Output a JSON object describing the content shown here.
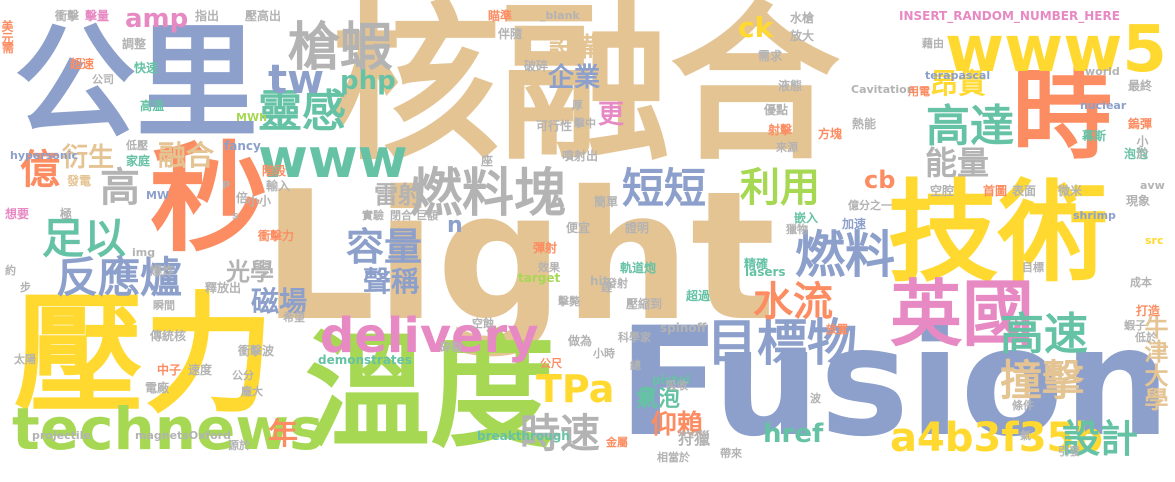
{
  "colors": {
    "tan": "#e5c494",
    "blue": "#8da0cb",
    "yellow": "#ffd92f",
    "green": "#a6d854",
    "orange": "#fc8d62",
    "teal": "#66c2a5",
    "pink": "#e78ac3",
    "gray": "#b3b3b3"
  },
  "words": [
    {
      "text": "核融合",
      "color": "tan"
    },
    {
      "text": "Light",
      "color": "tan"
    },
    {
      "text": "Fusion",
      "color": "blue"
    },
    {
      "text": "公里",
      "color": "blue"
    },
    {
      "text": "壓力",
      "color": "yellow"
    },
    {
      "text": "溫度",
      "color": "green"
    },
    {
      "text": "秒",
      "color": "orange"
    },
    {
      "text": "技術",
      "color": "yellow"
    },
    {
      "text": "時",
      "color": "orange"
    },
    {
      "text": "www5",
      "color": "yellow"
    },
    {
      "text": "英國",
      "color": "pink"
    },
    {
      "text": "technews",
      "color": "green"
    },
    {
      "text": "delivery",
      "color": "pink"
    },
    {
      "text": "www",
      "color": "teal"
    },
    {
      "text": "燃料塊",
      "color": "gray"
    },
    {
      "text": "目標物",
      "color": "blue"
    },
    {
      "text": "槍蝦",
      "color": "gray"
    },
    {
      "text": "靈感",
      "color": "teal"
    },
    {
      "text": "高達",
      "color": "teal"
    },
    {
      "text": "高速",
      "color": "teal"
    },
    {
      "text": "燃料",
      "color": "blue"
    },
    {
      "text": "a4b3f35b",
      "color": "yellow"
    },
    {
      "text": "短短",
      "color": "blue"
    },
    {
      "text": "足以",
      "color": "teal"
    },
    {
      "text": "反應爐",
      "color": "blue"
    },
    {
      "text": "撞擊",
      "color": "tan"
    },
    {
      "text": "TPa",
      "color": "yellow"
    },
    {
      "text": "水流",
      "color": "orange"
    },
    {
      "text": "時速",
      "color": "gray"
    },
    {
      "text": "設計",
      "color": "teal"
    },
    {
      "text": "tw",
      "color": "blue"
    },
    {
      "text": "利用",
      "color": "green"
    },
    {
      "text": "容量",
      "color": "blue"
    },
    {
      "text": "億",
      "color": "orange"
    },
    {
      "text": "高",
      "color": "gray"
    },
    {
      "text": "能量",
      "color": "gray"
    },
    {
      "text": "牛津大學",
      "color": "tan"
    },
    {
      "text": "融合",
      "color": "tan"
    },
    {
      "text": "衍生",
      "color": "tan"
    },
    {
      "text": "設備",
      "color": "tan"
    },
    {
      "text": "企業",
      "color": "blue"
    },
    {
      "text": "更",
      "color": "pink"
    },
    {
      "text": "昂貴",
      "color": "yellow"
    },
    {
      "text": "php",
      "color": "teal"
    },
    {
      "text": "amp",
      "color": "pink"
    },
    {
      "text": "雷射",
      "color": "gray"
    },
    {
      "text": "聲稱",
      "color": "blue"
    },
    {
      "text": "光學",
      "color": "gray"
    },
    {
      "text": "磁場",
      "color": "blue"
    },
    {
      "text": "href",
      "color": "teal"
    },
    {
      "text": "仰賴",
      "color": "orange"
    },
    {
      "text": "年",
      "color": "orange"
    },
    {
      "text": "cb",
      "color": "orange"
    },
    {
      "text": "ck",
      "color": "yellow"
    },
    {
      "text": "n",
      "color": "blue"
    },
    {
      "text": "a",
      "color": "teal"
    },
    {
      "text": "氣泡",
      "color": "teal"
    },
    {
      "text": "狩獵",
      "color": "gray"
    },
    {
      "text": "INSERT_RANDOM_NUMBER_HERE",
      "color": "pink"
    },
    {
      "text": "Cavitation",
      "color": "gray"
    },
    {
      "text": "terapascal",
      "color": "blue"
    },
    {
      "text": "world",
      "color": "gray"
    },
    {
      "text": "nuclear",
      "color": "blue"
    },
    {
      "text": "hypersonic",
      "color": "blue"
    },
    {
      "text": "fancy",
      "color": "blue"
    },
    {
      "text": "MWh",
      "color": "green"
    },
    {
      "text": "MW",
      "color": "blue"
    },
    {
      "text": "img",
      "color": "gray"
    },
    {
      "text": "_blank",
      "color": "gray"
    },
    {
      "text": "lasers",
      "color": "teal"
    },
    {
      "text": "target",
      "color": "green"
    },
    {
      "text": "hit",
      "color": "gray"
    },
    {
      "text": "spinoff",
      "color": "gray"
    },
    {
      "text": "pistol",
      "color": "teal"
    },
    {
      "text": "demonstrates",
      "color": "teal"
    },
    {
      "text": "projectile",
      "color": "gray"
    },
    {
      "text": "magnetsOxford",
      "color": "gray"
    },
    {
      "text": "breakthrough",
      "color": "teal"
    },
    {
      "text": "shrimp",
      "color": "blue"
    },
    {
      "text": "src",
      "color": "yellow"
    },
    {
      "text": "avw",
      "color": "gray"
    },
    {
      "text": "P",
      "color": "gray"
    },
    {
      "text": "s",
      "color": "gray"
    },
    {
      "text": "美元",
      "color": "orange"
    },
    {
      "text": "衝擊",
      "color": "gray"
    },
    {
      "text": "擊量",
      "color": "pink"
    },
    {
      "text": "指出",
      "color": "gray"
    },
    {
      "text": "壓高出",
      "color": "gray"
    },
    {
      "text": "瞄準",
      "color": "orange"
    },
    {
      "text": "伴隨",
      "color": "gray"
    },
    {
      "text": "水槍",
      "color": "gray"
    },
    {
      "text": "放大",
      "color": "gray"
    },
    {
      "text": "需求",
      "color": "gray"
    },
    {
      "text": "藉由",
      "color": "gray"
    },
    {
      "text": "用電",
      "color": "orange"
    },
    {
      "text": "最終",
      "color": "gray"
    },
    {
      "text": "鎢彈",
      "color": "orange"
    },
    {
      "text": "幕斯",
      "color": "teal"
    },
    {
      "text": "泡泡",
      "color": "teal"
    },
    {
      "text": "現象",
      "color": "gray"
    },
    {
      "text": "小於",
      "color": "gray"
    },
    {
      "text": "需",
      "color": "orange"
    },
    {
      "text": "超速",
      "color": "orange"
    },
    {
      "text": "調整",
      "color": "gray"
    },
    {
      "text": "快速",
      "color": "teal"
    },
    {
      "text": "公司",
      "color": "gray"
    },
    {
      "text": "高溫",
      "color": "teal"
    },
    {
      "text": "破碎",
      "color": "gray"
    },
    {
      "text": "擊中",
      "color": "gray"
    },
    {
      "text": "厚",
      "color": "gray"
    },
    {
      "text": "可行性",
      "color": "gray"
    },
    {
      "text": "液態",
      "color": "gray"
    },
    {
      "text": "優點",
      "color": "gray"
    },
    {
      "text": "射擊",
      "color": "orange"
    },
    {
      "text": "方塊",
      "color": "orange"
    },
    {
      "text": "熱能",
      "color": "gray"
    },
    {
      "text": "來源",
      "color": "gray"
    },
    {
      "text": "低壓",
      "color": "gray"
    },
    {
      "text": "家庭",
      "color": "teal"
    },
    {
      "text": "發電",
      "color": "tan"
    },
    {
      "text": "想要",
      "color": "pink"
    },
    {
      "text": "極",
      "color": "gray"
    },
    {
      "text": "噴射出",
      "color": "gray"
    },
    {
      "text": "座",
      "color": "gray"
    },
    {
      "text": "階段",
      "color": "orange"
    },
    {
      "text": "輸入",
      "color": "gray"
    },
    {
      "text": "小小",
      "color": "gray"
    },
    {
      "text": "簡單",
      "color": "gray"
    },
    {
      "text": "空腔",
      "color": "gray"
    },
    {
      "text": "首圖",
      "color": "orange"
    },
    {
      "text": "表面",
      "color": "gray"
    },
    {
      "text": "微米",
      "color": "gray"
    },
    {
      "text": "億分之一",
      "color": "gray"
    },
    {
      "text": "加速",
      "color": "blue"
    },
    {
      "text": "嵌入",
      "color": "teal"
    },
    {
      "text": "獵物",
      "color": "gray"
    },
    {
      "text": "倍",
      "color": "gray"
    },
    {
      "text": "實驗",
      "color": "gray"
    },
    {
      "text": "閉合",
      "color": "gray"
    },
    {
      "text": "巨額",
      "color": "gray"
    },
    {
      "text": "衝擊力",
      "color": "orange"
    },
    {
      "text": "彈射",
      "color": "orange"
    },
    {
      "text": "便宜",
      "color": "gray"
    },
    {
      "text": "證明",
      "color": "gray"
    },
    {
      "text": "精確",
      "color": "teal"
    },
    {
      "text": "約",
      "color": "gray"
    },
    {
      "text": "步",
      "color": "gray"
    },
    {
      "text": "爆炸",
      "color": "gray"
    },
    {
      "text": "瞬間",
      "color": "gray"
    },
    {
      "text": "釋放出",
      "color": "gray"
    },
    {
      "text": "效果",
      "color": "gray"
    },
    {
      "text": "發射",
      "color": "gray"
    },
    {
      "text": "軌道炮",
      "color": "teal"
    },
    {
      "text": "超過",
      "color": "teal"
    },
    {
      "text": "壓縮到",
      "color": "gray"
    },
    {
      "text": "擊斃",
      "color": "gray"
    },
    {
      "text": "目標",
      "color": "gray"
    },
    {
      "text": "成本",
      "color": "gray"
    },
    {
      "text": "打造",
      "color": "orange"
    },
    {
      "text": "蝦子",
      "color": "gray"
    },
    {
      "text": "低於",
      "color": "gray"
    },
    {
      "text": "傳統核",
      "color": "gray"
    },
    {
      "text": "衝擊波",
      "color": "gray"
    },
    {
      "text": "空蝕",
      "color": "gray"
    },
    {
      "text": "做為",
      "color": "gray"
    },
    {
      "text": "科學家",
      "color": "gray"
    },
    {
      "text": "放置",
      "color": "orange"
    },
    {
      "text": "太陽",
      "color": "gray"
    },
    {
      "text": "中子",
      "color": "orange"
    },
    {
      "text": "速度",
      "color": "gray"
    },
    {
      "text": "電廠",
      "color": "gray"
    },
    {
      "text": "公分",
      "color": "gray"
    },
    {
      "text": "龐大",
      "color": "gray"
    },
    {
      "text": "碎裂",
      "color": "gray"
    },
    {
      "text": "公尺",
      "color": "orange"
    },
    {
      "text": "小時",
      "color": "gray"
    },
    {
      "text": "總",
      "color": "gray"
    },
    {
      "text": "吸收",
      "color": "gray"
    },
    {
      "text": "波",
      "color": "gray"
    },
    {
      "text": "條件",
      "color": "gray"
    },
    {
      "text": "氣",
      "color": "gray"
    },
    {
      "text": "源於",
      "color": "gray"
    },
    {
      "text": "金屬",
      "color": "orange"
    },
    {
      "text": "相當於",
      "color": "gray"
    },
    {
      "text": "帶來",
      "color": "gray"
    },
    {
      "text": "引發",
      "color": "gray"
    },
    {
      "text": "希望",
      "color": "gray"
    },
    {
      "text": "鋰",
      "color": "gray"
    }
  ]
}
